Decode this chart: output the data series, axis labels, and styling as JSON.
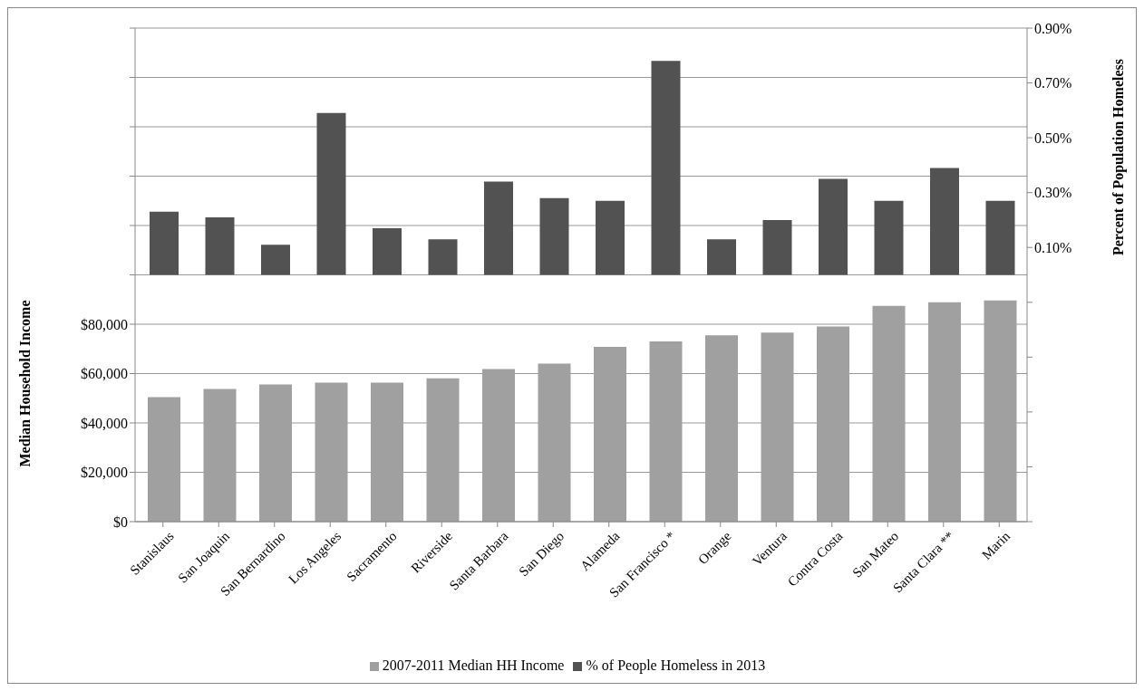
{
  "chart_data": {
    "type": "bar",
    "categories": [
      "Stanislaus",
      "San Joaquin",
      "San Bernardino",
      "Los Angeles",
      "Sacramento",
      "Riverside",
      "Santa Barbara",
      "San Diego",
      "Alameda",
      "San Francisco *",
      "Orange",
      "Ventura",
      "Contra Costa",
      "San Mateo",
      "Santa Clara **",
      "Marin"
    ],
    "series": [
      {
        "name": "2007-2011 Median HH Income",
        "color": "#a0a0a0",
        "values": [
          50500,
          53800,
          55600,
          56300,
          56300,
          58100,
          61800,
          64000,
          70800,
          73000,
          75500,
          76600,
          79100,
          87400,
          88900,
          89600
        ]
      },
      {
        "name": "% of People Homeless in 2013",
        "color": "#525252",
        "axis": "y2",
        "values": [
          0.23,
          0.21,
          0.11,
          0.59,
          0.17,
          0.13,
          0.34,
          0.28,
          0.27,
          0.78,
          0.13,
          0.2,
          0.35,
          0.27,
          0.39,
          0.27
        ]
      }
    ],
    "ylabel": "Median Household Income",
    "y2label": "Percent of Population Homeless",
    "ylim": [
      0,
      200000
    ],
    "yticks": [
      {
        "value": 0,
        "label": "$0"
      },
      {
        "value": 20000,
        "label": "$20,000"
      },
      {
        "value": 40000,
        "label": "$40,000"
      },
      {
        "value": 60000,
        "label": "$60,000"
      },
      {
        "value": 80000,
        "label": "$80,000"
      },
      {
        "value": 100000,
        "label": null
      },
      {
        "value": 120000,
        "label": null
      },
      {
        "value": 140000,
        "label": null
      },
      {
        "value": 160000,
        "label": null
      },
      {
        "value": 180000,
        "label": null
      },
      {
        "value": 200000,
        "label": null
      }
    ],
    "y2lim": [
      -0.9,
      0.9
    ],
    "y2ticks": [
      {
        "value": -0.9,
        "label": null
      },
      {
        "value": -0.7,
        "label": null
      },
      {
        "value": -0.5,
        "label": null
      },
      {
        "value": -0.3,
        "label": null
      },
      {
        "value": -0.1,
        "label": null
      },
      {
        "value": 0.1,
        "label": "0.10%"
      },
      {
        "value": 0.3,
        "label": "0.30%"
      },
      {
        "value": 0.5,
        "label": "0.50%"
      },
      {
        "value": 0.7,
        "label": "0.70%"
      },
      {
        "value": 0.9,
        "label": "0.90%"
      }
    ],
    "grid": "y",
    "legend": "bottom"
  }
}
